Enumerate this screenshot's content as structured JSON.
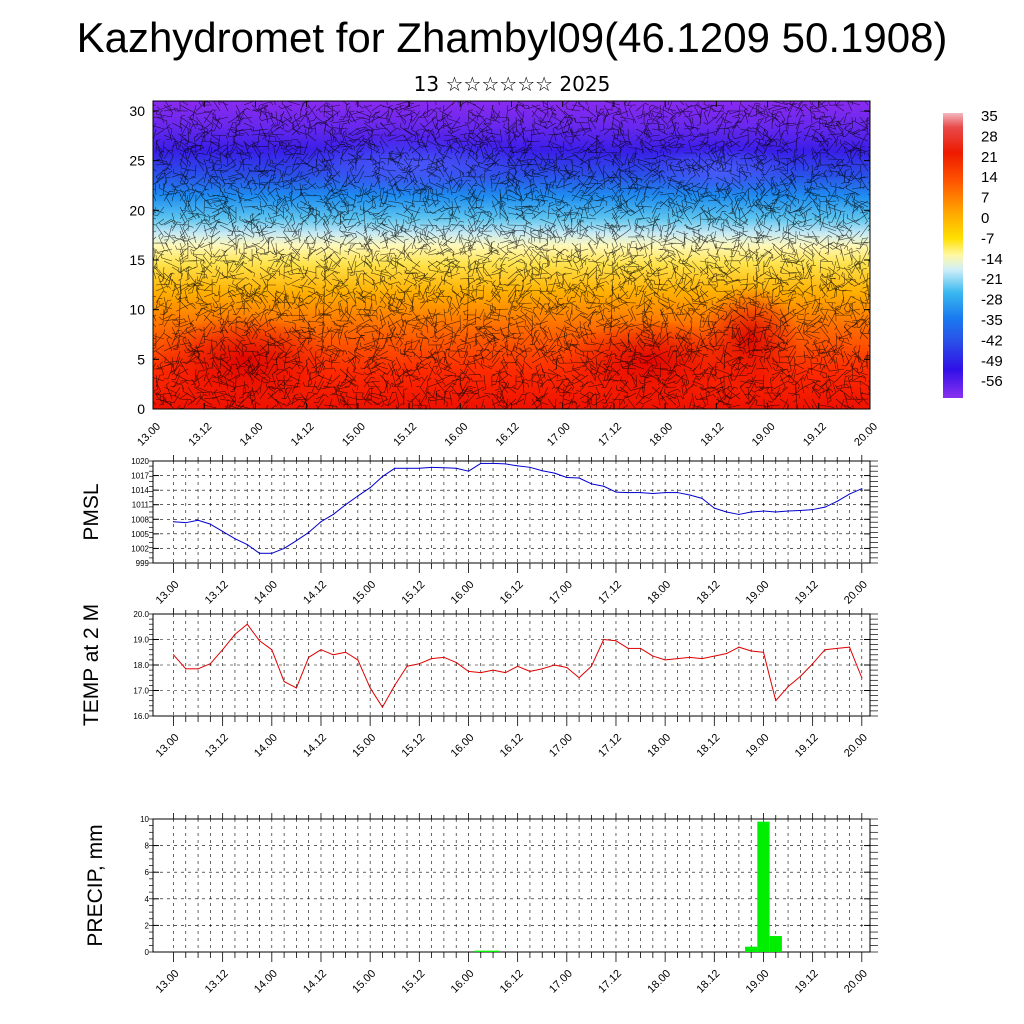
{
  "title": "Kazhydromet for Zhambyl09(46.1209 50.1908)",
  "subtitle": "13 ☆☆☆☆☆☆ 2025",
  "colors": {
    "pmsl_line": "#0000cc",
    "temp_line": "#dd0000",
    "precip_bar": "#00ee00",
    "grid": "#000000"
  },
  "chart_data": [
    {
      "type": "heatmap",
      "id": "cross_section",
      "ylim": [
        0,
        31
      ],
      "y_ticks": [
        "0",
        "5",
        "10",
        "15",
        "20",
        "25",
        "30"
      ],
      "x_tick_labels": [
        "13.00",
        "13.12",
        "14.00",
        "14.12",
        "15.00",
        "15.12",
        "16.00",
        "16.12",
        "17.00",
        "17.12",
        "18.00",
        "18.12",
        "19.00",
        "19.12",
        "20.00"
      ],
      "colorbar_labels": [
        "35",
        "28",
        "21",
        "14",
        "7",
        "0",
        "-7",
        "-14",
        "-21",
        "-28",
        "-35",
        "-42",
        "-49",
        "-56"
      ],
      "overlay": "wind barbs"
    },
    {
      "type": "line",
      "id": "pmsl",
      "ylabel": "PMSL",
      "ylim": [
        999,
        1020
      ],
      "y_ticks": [
        "999",
        "1002",
        "1005",
        "1008",
        "1011",
        "1014",
        "1017",
        "1020"
      ],
      "x_tick_labels": [
        "13.00",
        "13.12",
        "14.00",
        "14.12",
        "15.00",
        "15.12",
        "16.00",
        "16.12",
        "17.00",
        "17.12",
        "18.00",
        "18.12",
        "19.00",
        "19.12",
        "20.00"
      ],
      "grid": true,
      "series": [
        {
          "x": [
            0,
            3,
            6,
            9,
            12,
            15,
            18,
            21,
            24,
            27,
            30,
            33,
            36,
            39,
            42,
            45,
            48,
            51,
            54,
            57,
            60,
            63,
            66,
            69,
            72,
            75,
            78,
            81,
            84,
            87,
            90,
            93,
            96,
            99,
            102,
            105,
            108,
            111,
            114,
            117,
            120,
            123,
            126,
            129,
            132,
            135,
            138,
            141,
            144,
            147,
            150,
            153,
            156,
            159,
            162,
            165,
            168
          ],
          "values": [
            1007.5,
            1007.3,
            1007.8,
            1007,
            1005.5,
            1004,
            1002.8,
            1001,
            1001,
            1002,
            1003.6,
            1005.3,
            1007.5,
            1009,
            1011,
            1012.8,
            1014.5,
            1016.8,
            1018.5,
            1018.5,
            1018.5,
            1018.7,
            1018.6,
            1018.5,
            1017.9,
            1019.5,
            1019.5,
            1019.4,
            1019,
            1018.7,
            1018,
            1017.5,
            1016.6,
            1016.5,
            1015.3,
            1014.8,
            1013.6,
            1013.5,
            1013.5,
            1013.3,
            1013.5,
            1013.5,
            1013,
            1012.3,
            1010.3,
            1009.5,
            1009,
            1009.5,
            1009.7,
            1009.5,
            1009.7,
            1009.8,
            1010,
            1010.5,
            1011.7,
            1013.2,
            1014.3
          ]
        }
      ]
    },
    {
      "type": "line",
      "id": "temp",
      "ylabel": "TEMP at 2 M",
      "ylim": [
        16,
        20
      ],
      "y_ticks": [
        "16.0",
        "17.0",
        "18.0",
        "19.0",
        "20.0"
      ],
      "x_tick_labels": [
        "13.00",
        "13.12",
        "14.00",
        "14.12",
        "15.00",
        "15.12",
        "16.00",
        "16.12",
        "17.00",
        "17.12",
        "18.00",
        "18.12",
        "19.00",
        "19.12",
        "20.00"
      ],
      "grid": true,
      "series": [
        {
          "x": [
            0,
            3,
            6,
            9,
            12,
            15,
            18,
            21,
            24,
            27,
            30,
            33,
            36,
            39,
            42,
            45,
            48,
            51,
            54,
            57,
            60,
            63,
            66,
            69,
            72,
            75,
            78,
            81,
            84,
            87,
            90,
            93,
            96,
            99,
            102,
            105,
            108,
            111,
            114,
            117,
            120,
            123,
            126,
            129,
            132,
            135,
            138,
            141,
            144,
            147,
            150,
            153,
            156,
            159,
            162,
            165,
            168
          ],
          "values": [
            18.4,
            17.85,
            17.85,
            18.05,
            18.6,
            19.2,
            19.6,
            18.95,
            18.6,
            17.35,
            17.1,
            18.3,
            18.6,
            18.4,
            18.5,
            18.2,
            17.1,
            16.35,
            17.2,
            17.95,
            18.05,
            18.25,
            18.3,
            18.1,
            17.75,
            17.7,
            17.8,
            17.7,
            17.95,
            17.75,
            17.85,
            18,
            17.9,
            17.5,
            17.95,
            19,
            18.95,
            18.65,
            18.65,
            18.35,
            18.2,
            18.25,
            18.3,
            18.25,
            18.35,
            18.45,
            18.7,
            18.55,
            18.5,
            16.6,
            17.15,
            17.55,
            18.05,
            18.6,
            18.65,
            18.7,
            17.5
          ]
        }
      ]
    },
    {
      "type": "bar",
      "id": "precip",
      "ylabel": "PRECIP, mm",
      "ylim": [
        0,
        10
      ],
      "y_ticks": [
        "0",
        "2",
        "4",
        "6",
        "8",
        "10"
      ],
      "x_tick_labels": [
        "13.00",
        "13.12",
        "14.00",
        "14.12",
        "15.00",
        "15.12",
        "16.00",
        "16.12",
        "17.00",
        "17.12",
        "18.00",
        "18.12",
        "19.00",
        "19.12",
        "20.00"
      ],
      "grid": true,
      "bars": [
        {
          "x": 75,
          "value": 0.1
        },
        {
          "x": 78,
          "value": 0.1
        },
        {
          "x": 141,
          "value": 0.4
        },
        {
          "x": 144,
          "value": 9.8
        },
        {
          "x": 147,
          "value": 1.2
        }
      ]
    }
  ]
}
